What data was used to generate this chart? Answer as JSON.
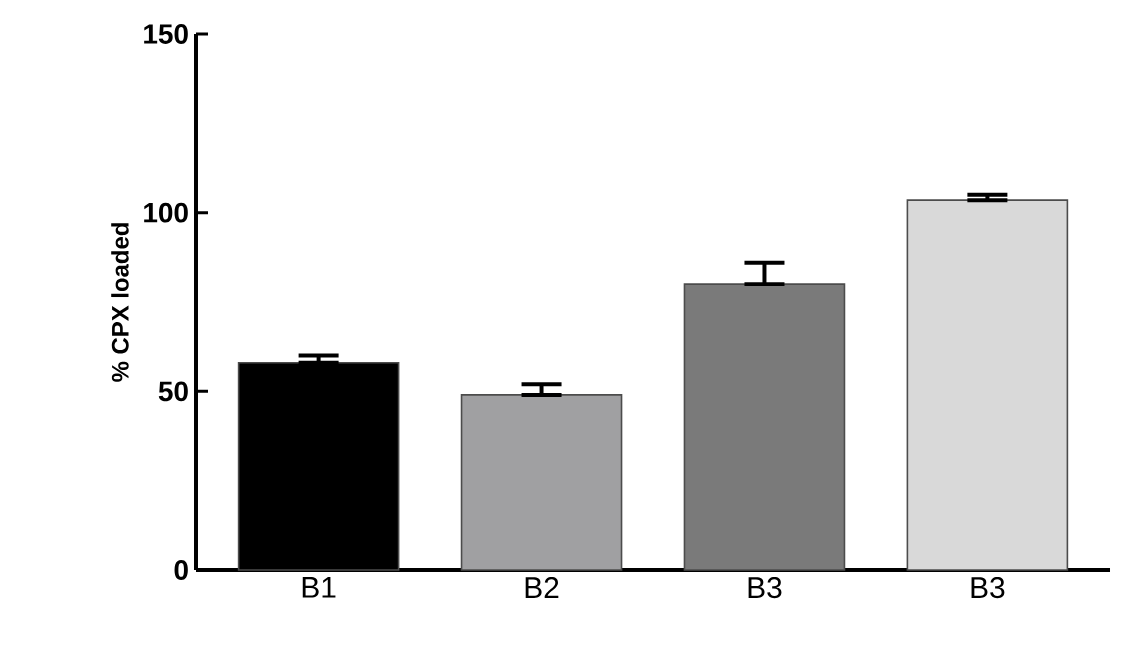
{
  "chart_data": {
    "type": "bar",
    "ylabel": "% CPX loaded",
    "categories": [
      "B1",
      "B2",
      "B3",
      "B3"
    ],
    "values": [
      58,
      49,
      80,
      103.5
    ],
    "colors": [
      "#000000",
      "#a0a0a2",
      "#7a7a7a",
      "#d9d9d9"
    ],
    "errors": [
      [
        58,
        60
      ],
      [
        49,
        52
      ],
      [
        80,
        86
      ],
      [
        103.5,
        105
      ]
    ],
    "ylim": [
      0,
      150
    ],
    "yticks": [
      0,
      50,
      100,
      150
    ],
    "grid": false
  }
}
